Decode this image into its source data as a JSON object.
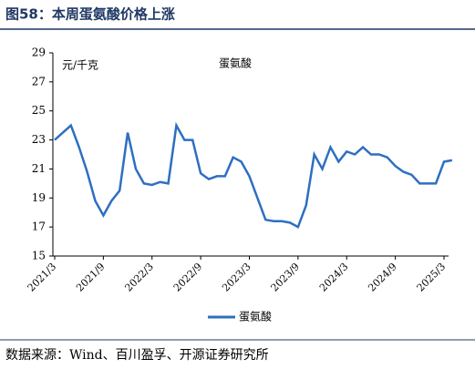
{
  "chart_data": {
    "type": "line",
    "title": "图58：本周蛋氨酸价格上涨",
    "y_label": "元/千克",
    "source": "数据来源：Wind、百川盈孚、开源证券研究所",
    "categories": [
      "2021/3",
      null,
      null,
      null,
      null,
      null,
      "2021/9",
      null,
      null,
      null,
      null,
      null,
      "2022/3",
      null,
      null,
      null,
      null,
      null,
      "2022/9",
      null,
      null,
      null,
      null,
      null,
      "2023/3",
      null,
      null,
      null,
      null,
      null,
      "2023/9",
      null,
      null,
      null,
      null,
      null,
      "2024/3",
      null,
      null,
      null,
      null,
      null,
      "2024/9",
      null,
      null,
      null,
      null,
      null,
      "2025/3",
      null
    ],
    "series": [
      {
        "name": "蛋氨酸",
        "color": "#2e6fc1",
        "values": [
          23.0,
          23.5,
          24.0,
          22.5,
          20.8,
          18.8,
          17.8,
          18.8,
          19.5,
          23.5,
          21.0,
          20.0,
          19.9,
          20.1,
          20.0,
          24.0,
          23.0,
          23.0,
          20.7,
          20.3,
          20.5,
          20.5,
          21.8,
          21.5,
          20.5,
          19.0,
          17.5,
          17.4,
          17.4,
          17.3,
          17.0,
          18.5,
          22.0,
          21.0,
          22.5,
          21.5,
          22.2,
          22.0,
          22.5,
          22.0,
          22.0,
          21.8,
          21.2,
          20.8,
          20.6,
          20.0,
          20.0,
          20.0,
          21.5,
          21.6
        ]
      }
    ],
    "ylim": [
      15,
      29
    ],
    "yticks": [
      15,
      17,
      19,
      21,
      23,
      25,
      27,
      29
    ]
  }
}
